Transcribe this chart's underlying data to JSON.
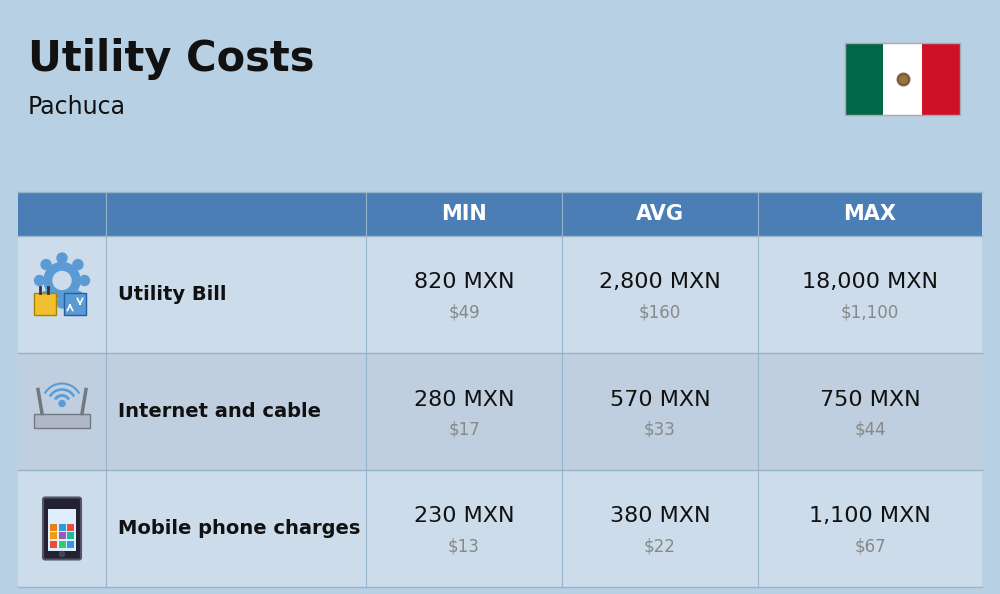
{
  "title": "Utility Costs",
  "subtitle": "Pachuca",
  "bg_color": "#b8d0e3",
  "header_bg": "#4a7eb5",
  "header_fg": "#ffffff",
  "row1_bg": "#ccdcea",
  "row2_bg": "#bfcfdf",
  "divider_color": "#96b4cc",
  "col_headers": [
    "MIN",
    "AVG",
    "MAX"
  ],
  "rows": [
    {
      "label": "Utility Bill",
      "min_mxn": "820 MXN",
      "min_usd": "$49",
      "avg_mxn": "2,800 MXN",
      "avg_usd": "$160",
      "max_mxn": "18,000 MXN",
      "max_usd": "$1,100",
      "icon": "utility"
    },
    {
      "label": "Internet and cable",
      "min_mxn": "280 MXN",
      "min_usd": "$17",
      "avg_mxn": "570 MXN",
      "avg_usd": "$33",
      "max_mxn": "750 MXN",
      "max_usd": "$44",
      "icon": "internet"
    },
    {
      "label": "Mobile phone charges",
      "min_mxn": "230 MXN",
      "min_usd": "$13",
      "avg_mxn": "380 MXN",
      "avg_usd": "$22",
      "max_mxn": "1,100 MXN",
      "max_usd": "$67",
      "icon": "mobile"
    }
  ],
  "flag_green": "#006847",
  "flag_white": "#ffffff",
  "flag_red": "#ce1126",
  "title_fontsize": 30,
  "subtitle_fontsize": 17,
  "header_fontsize": 15,
  "label_fontsize": 14,
  "value_fontsize": 16,
  "usd_fontsize": 12
}
